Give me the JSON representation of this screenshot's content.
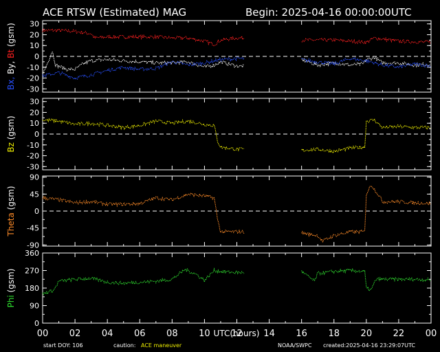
{
  "header": {
    "title": "ACE RTSW (Estimated) MAG",
    "begin": "Begin: 2025-04-16 00:00:00UTC"
  },
  "footer": {
    "start_doy": "start DOY:  106",
    "caution_label": "caution:",
    "caution_value": "ACE maneuver",
    "agency": "NOAA/SWPC",
    "created": "created:2025-04-16 23:29:07UTC"
  },
  "colors": {
    "red": "#ff2020",
    "white": "#ffffff",
    "blue": "#2850ff",
    "yellow": "#f0f000",
    "orange": "#ff8c28",
    "green": "#30e030",
    "axis": "#ffffff",
    "background": "#000000"
  },
  "chart_data": [
    {
      "type": "line",
      "ylabel": [
        "Bx,",
        "By,",
        "Bt",
        "(gsm)"
      ],
      "ylim": [
        -33,
        33
      ],
      "yticks": [
        30,
        20,
        10,
        0,
        -10,
        -20,
        -30
      ],
      "zero_line": true,
      "gaps": [
        [
          12.5,
          16
        ]
      ],
      "series": [
        {
          "color": "red",
          "values": [
            [
              0,
              24
            ],
            [
              1,
              24
            ],
            [
              2,
              23
            ],
            [
              3,
              21
            ],
            [
              3.2,
              17
            ],
            [
              4,
              18
            ],
            [
              5,
              18
            ],
            [
              6,
              18
            ],
            [
              7,
              18
            ],
            [
              8,
              17
            ],
            [
              9,
              17
            ],
            [
              10,
              14
            ],
            [
              10.6,
              11
            ],
            [
              11,
              15
            ],
            [
              12,
              17
            ],
            [
              12.4,
              17
            ],
            [
              16,
              15
            ],
            [
              18,
              15
            ],
            [
              20,
              13
            ],
            [
              20.5,
              17
            ],
            [
              22,
              14
            ],
            [
              24,
              13
            ]
          ]
        },
        {
          "color": "white",
          "values": [
            [
              0,
              -17
            ],
            [
              0.6,
              5
            ],
            [
              0.8,
              -8
            ],
            [
              1.5,
              -12
            ],
            [
              2,
              -12
            ],
            [
              2.5,
              -7
            ],
            [
              3,
              -4
            ],
            [
              4,
              -3
            ],
            [
              5,
              -4
            ],
            [
              6,
              -5
            ],
            [
              7,
              -6
            ],
            [
              8,
              -6
            ],
            [
              9,
              -5
            ],
            [
              10,
              -10
            ],
            [
              10.6,
              -8
            ],
            [
              11,
              -5
            ],
            [
              12,
              -9
            ],
            [
              12.4,
              -9
            ],
            [
              16,
              -3
            ],
            [
              17,
              -8
            ],
            [
              18,
              -6
            ],
            [
              19,
              -8
            ],
            [
              19.8,
              -7
            ],
            [
              20,
              -3
            ],
            [
              20.5,
              -1
            ],
            [
              21,
              -6
            ],
            [
              22,
              -6
            ],
            [
              23,
              -8
            ],
            [
              24,
              -7
            ]
          ]
        },
        {
          "color": "blue",
          "values": [
            [
              0,
              -18
            ],
            [
              1,
              -15
            ],
            [
              2,
              -20
            ],
            [
              3,
              -17
            ],
            [
              4,
              -13
            ],
            [
              5,
              -10
            ],
            [
              6,
              -12
            ],
            [
              7,
              -11
            ],
            [
              8,
              -5
            ],
            [
              9,
              -8
            ],
            [
              10,
              -6
            ],
            [
              11,
              -3
            ],
            [
              12,
              -2
            ],
            [
              12.4,
              -2
            ],
            [
              16,
              -3
            ],
            [
              17,
              -5
            ],
            [
              18,
              -7
            ],
            [
              19,
              -2
            ],
            [
              20,
              -4
            ],
            [
              21,
              -8
            ],
            [
              22,
              -10
            ],
            [
              23,
              -7
            ],
            [
              24,
              -9
            ]
          ]
        }
      ]
    },
    {
      "type": "line",
      "ylabel": [
        "Bz",
        "(gsm)"
      ],
      "ylim": [
        -33,
        33
      ],
      "yticks": [
        30,
        20,
        10,
        0,
        -10,
        -20,
        -30
      ],
      "zero_line": true,
      "gaps": [
        [
          12.5,
          16
        ]
      ],
      "series": [
        {
          "color": "yellow",
          "values": [
            [
              0,
              13
            ],
            [
              1,
              12
            ],
            [
              2,
              9
            ],
            [
              3,
              10
            ],
            [
              4,
              8
            ],
            [
              5,
              6
            ],
            [
              6,
              8
            ],
            [
              7,
              12
            ],
            [
              8,
              10
            ],
            [
              9,
              12
            ],
            [
              10,
              9
            ],
            [
              10.6,
              8
            ],
            [
              10.8,
              -6
            ],
            [
              11,
              -12
            ],
            [
              12,
              -14
            ],
            [
              12.4,
              -14
            ],
            [
              16,
              -15
            ],
            [
              17,
              -14
            ],
            [
              18,
              -16
            ],
            [
              19,
              -13
            ],
            [
              19.9,
              -12
            ],
            [
              20,
              12
            ],
            [
              20.5,
              13
            ],
            [
              21,
              6
            ],
            [
              22,
              7
            ],
            [
              23,
              6
            ],
            [
              24,
              6
            ]
          ]
        }
      ]
    },
    {
      "type": "line",
      "ylabel": [
        "Theta",
        "(gsm)"
      ],
      "ylim": [
        -93,
        93
      ],
      "yticks": [
        90,
        45,
        0,
        -45,
        -90
      ],
      "zero_line": true,
      "gaps": [
        [
          12.5,
          16
        ]
      ],
      "series": [
        {
          "color": "orange",
          "values": [
            [
              0,
              35
            ],
            [
              1,
              30
            ],
            [
              2,
              22
            ],
            [
              3,
              25
            ],
            [
              4,
              18
            ],
            [
              5,
              18
            ],
            [
              6,
              20
            ],
            [
              7,
              35
            ],
            [
              8,
              30
            ],
            [
              9,
              45
            ],
            [
              10,
              40
            ],
            [
              10.6,
              35
            ],
            [
              10.8,
              -20
            ],
            [
              11,
              -55
            ],
            [
              12,
              -55
            ],
            [
              12.4,
              -55
            ],
            [
              16,
              -58
            ],
            [
              17,
              -65
            ],
            [
              17.3,
              -80
            ],
            [
              18,
              -65
            ],
            [
              19,
              -55
            ],
            [
              19.9,
              -55
            ],
            [
              20,
              45
            ],
            [
              20.3,
              70
            ],
            [
              20.8,
              40
            ],
            [
              21,
              25
            ],
            [
              22,
              25
            ],
            [
              23,
              22
            ],
            [
              24,
              20
            ]
          ]
        }
      ]
    },
    {
      "type": "line",
      "ylabel": [
        "Phi",
        "(gsm)"
      ],
      "ylim": [
        0,
        360
      ],
      "yticks": [
        360,
        270,
        180,
        90,
        0
      ],
      "zero_line": false,
      "gaps": [
        [
          12.5,
          16
        ]
      ],
      "series": [
        {
          "color": "green",
          "values": [
            [
              0,
              150
            ],
            [
              0.7,
              170
            ],
            [
              1,
              215
            ],
            [
              2,
              225
            ],
            [
              3,
              230
            ],
            [
              4,
              210
            ],
            [
              5,
              205
            ],
            [
              6,
              210
            ],
            [
              7,
              215
            ],
            [
              8,
              225
            ],
            [
              8.8,
              275
            ],
            [
              9.5,
              250
            ],
            [
              10,
              220
            ],
            [
              10.6,
              270
            ],
            [
              11,
              265
            ],
            [
              12,
              260
            ],
            [
              12.4,
              260
            ],
            [
              16,
              265
            ],
            [
              16.8,
              215
            ],
            [
              17,
              255
            ],
            [
              18,
              265
            ],
            [
              19,
              270
            ],
            [
              19.9,
              265
            ],
            [
              20,
              180
            ],
            [
              20.3,
              170
            ],
            [
              20.6,
              225
            ],
            [
              21,
              225
            ],
            [
              22,
              225
            ],
            [
              23,
              225
            ],
            [
              24,
              222
            ]
          ]
        }
      ]
    }
  ],
  "xaxis": {
    "label": "UTC(hours)",
    "xlim": [
      0,
      24
    ],
    "tick_labels": [
      "00",
      "02",
      "04",
      "06",
      "08",
      "10",
      "12",
      "14",
      "16",
      "18",
      "20",
      "22",
      "00"
    ]
  }
}
